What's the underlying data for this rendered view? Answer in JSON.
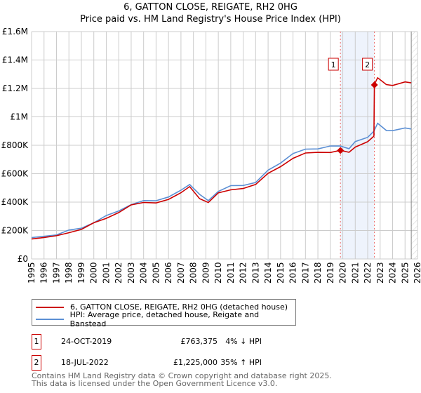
{
  "chart_data": {
    "type": "line",
    "title": "6, GATTON CLOSE, REIGATE, RH2 0HG",
    "subtitle": "Price paid vs. HM Land Registry's House Price Index (HPI)",
    "xlim": [
      1995,
      2026
    ],
    "ylim": [
      0,
      1600000
    ],
    "x_ticks": [
      "1995",
      "1996",
      "1997",
      "1998",
      "1999",
      "2000",
      "2001",
      "2002",
      "2003",
      "2004",
      "2005",
      "2006",
      "2007",
      "2008",
      "2009",
      "2010",
      "2011",
      "2012",
      "2013",
      "2014",
      "2015",
      "2016",
      "2017",
      "2018",
      "2019",
      "2020",
      "2021",
      "2022",
      "2023",
      "2024",
      "2025",
      "2026"
    ],
    "y_ticks": [
      {
        "v": 0,
        "label": "£0"
      },
      {
        "v": 200000,
        "label": "£200K"
      },
      {
        "v": 400000,
        "label": "£400K"
      },
      {
        "v": 600000,
        "label": "£600K"
      },
      {
        "v": 800000,
        "label": "£800K"
      },
      {
        "v": 1000000,
        "label": "£1M"
      },
      {
        "v": 1200000,
        "label": "£1.2M"
      },
      {
        "v": 1400000,
        "label": "£1.4M"
      },
      {
        "v": 1600000,
        "label": "£1.6M"
      }
    ],
    "grid": true,
    "series": [
      {
        "name": "6, GATTON CLOSE, REIGATE, RH2 0HG (detached house)",
        "color": "#cc0000",
        "x": [
          1995,
          1996,
          1997,
          1998,
          1999,
          2000,
          2001,
          2002,
          2003,
          2004,
          2005,
          2006,
          2007,
          2007.7,
          2008.5,
          2009.2,
          2010,
          2011,
          2012,
          2013,
          2014,
          2015,
          2016,
          2017,
          2018,
          2019,
          2019.81,
          2020.5,
          2021,
          2022,
          2022.5,
          2022.54,
          2022.8,
          2023.5,
          2024,
          2025,
          2025.5
        ],
        "values": [
          140000,
          145000,
          165000,
          190000,
          205000,
          250000,
          290000,
          330000,
          375000,
          395000,
          400000,
          420000,
          460000,
          510000,
          430000,
          395000,
          460000,
          490000,
          500000,
          520000,
          600000,
          655000,
          710000,
          740000,
          750000,
          755000,
          763375,
          745000,
          790000,
          830000,
          860000,
          1225000,
          1280000,
          1230000,
          1215000,
          1245000,
          1245000
        ]
      },
      {
        "name": "HPI: Average price, detached house, Reigate and Banstead",
        "color": "#5b8fd4",
        "x": [
          1995,
          1996,
          1997,
          1998,
          1999,
          2000,
          2001,
          2002,
          2003,
          2004,
          2005,
          2006,
          2007,
          2007.7,
          2008.5,
          2009.2,
          2010,
          2011,
          2012,
          2013,
          2014,
          2015,
          2016,
          2017,
          2018,
          2019,
          2019.81,
          2020.5,
          2021,
          2022,
          2022.5,
          2022.8,
          2023.5,
          2024,
          2025,
          2025.5
        ],
        "values": [
          150000,
          155000,
          175000,
          200000,
          215000,
          260000,
          300000,
          340000,
          385000,
          405000,
          415000,
          435000,
          480000,
          530000,
          450000,
          410000,
          480000,
          510000,
          520000,
          540000,
          620000,
          680000,
          740000,
          770000,
          780000,
          790000,
          795000,
          780000,
          820000,
          860000,
          900000,
          950000,
          910000,
          900000,
          920000,
          920000
        ]
      }
    ],
    "sales": [
      {
        "id": "1",
        "x": 2019.81,
        "value": 763375,
        "date": "24-OCT-2019",
        "price": "£763,375",
        "hpi": "4% ↓ HPI"
      },
      {
        "id": "2",
        "x": 2022.54,
        "value": 1225000,
        "date": "18-JUL-2022",
        "price": "£1,225,000",
        "hpi": "35% ↑ HPI"
      }
    ],
    "forecast_from": 2025.5
  },
  "footer": {
    "line1": "Contains HM Land Registry data © Crown copyright and database right 2025.",
    "line2": "This data is licensed under the Open Government Licence v3.0."
  }
}
